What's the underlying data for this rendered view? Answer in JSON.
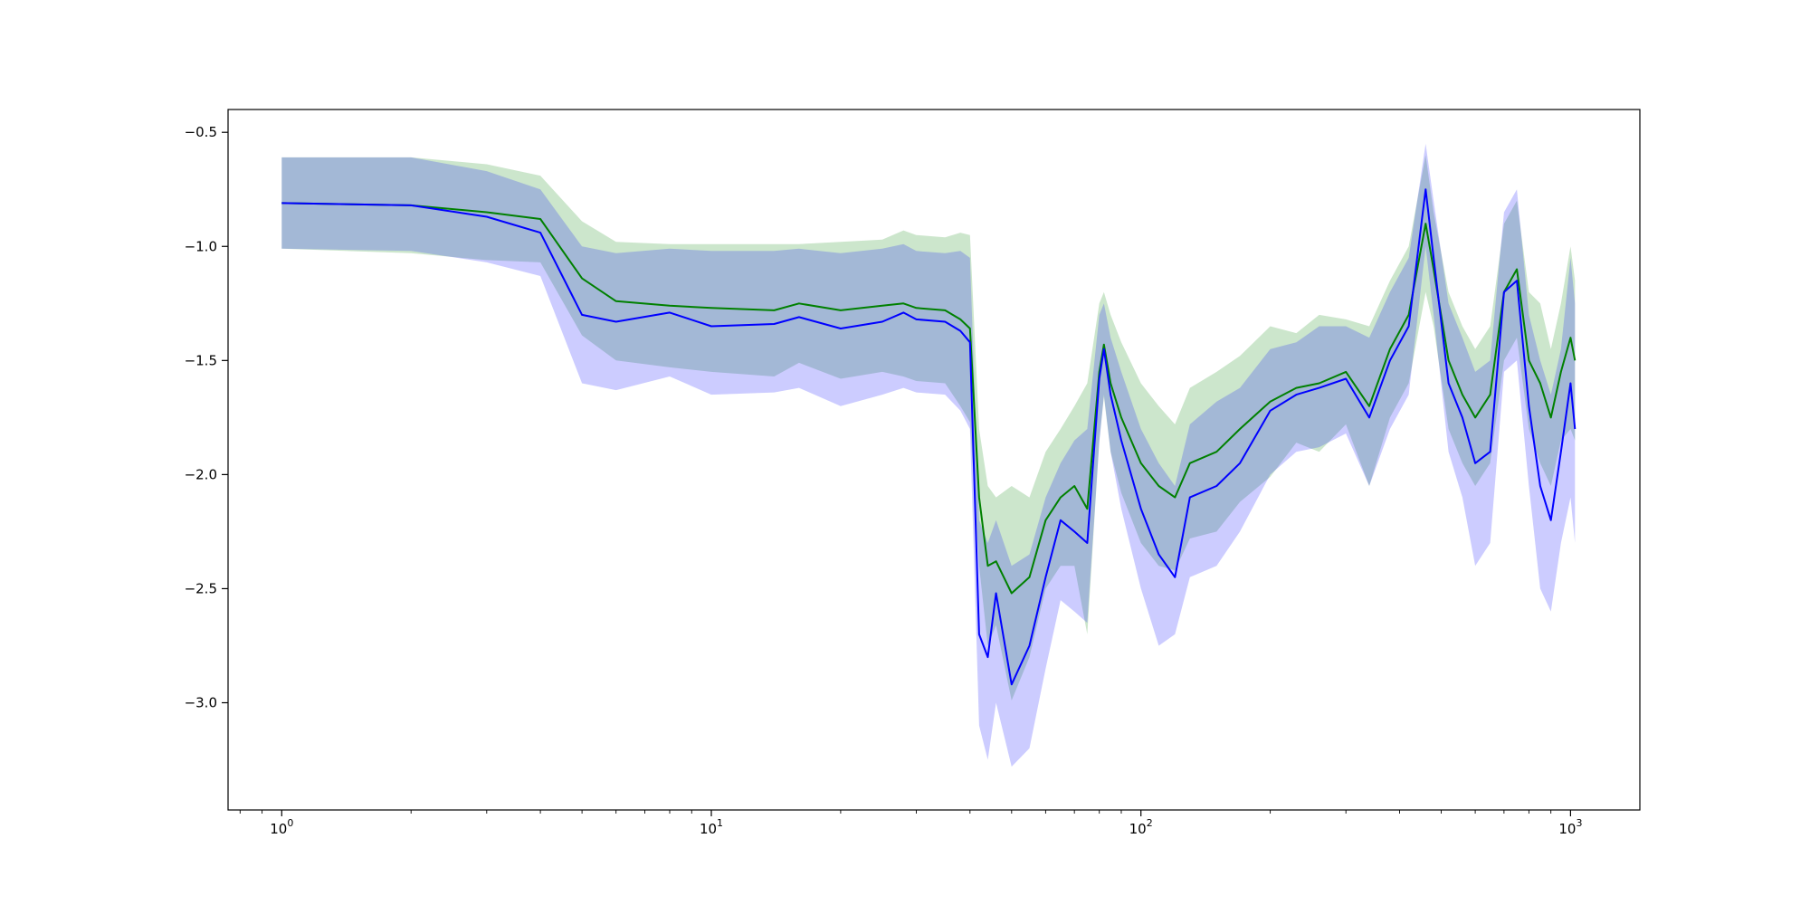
{
  "chart_data": {
    "type": "line",
    "title": "",
    "xlabel": "",
    "ylabel": "",
    "xscale": "log",
    "xlim": [
      0.75,
      1450
    ],
    "ylim": [
      -3.47,
      -0.4
    ],
    "x_ticks": [
      {
        "value": 1,
        "base": "10",
        "exp": "0"
      },
      {
        "value": 10,
        "base": "10",
        "exp": "1"
      },
      {
        "value": 100,
        "base": "10",
        "exp": "2"
      },
      {
        "value": 1000,
        "base": "10",
        "exp": "3"
      }
    ],
    "y_ticks": [
      {
        "value": -0.5,
        "label": "−0.5"
      },
      {
        "value": -1.0,
        "label": "−1.0"
      },
      {
        "value": -1.5,
        "label": "−1.5"
      },
      {
        "value": -2.0,
        "label": "−2.0"
      },
      {
        "value": -2.5,
        "label": "−2.5"
      },
      {
        "value": -3.0,
        "label": "−3.0"
      }
    ],
    "grid": false,
    "legend": "none",
    "series": [
      {
        "color": "#008000",
        "band_color": "#008000",
        "band_opacity": 0.2,
        "x": [
          1,
          2,
          3,
          4,
          5,
          6,
          8,
          10,
          14,
          16,
          20,
          25,
          28,
          30,
          35,
          38,
          40,
          42,
          44,
          46,
          50,
          55,
          60,
          65,
          70,
          75,
          80,
          82,
          85,
          90,
          100,
          110,
          120,
          130,
          150,
          170,
          200,
          230,
          260,
          300,
          340,
          380,
          420,
          460,
          480,
          520,
          560,
          600,
          650,
          700,
          750,
          800,
          850,
          900,
          950,
          1000,
          1024
        ],
        "mean": [
          -0.81,
          -0.82,
          -0.85,
          -0.88,
          -1.14,
          -1.24,
          -1.26,
          -1.27,
          -1.28,
          -1.25,
          -1.28,
          -1.26,
          -1.25,
          -1.27,
          -1.28,
          -1.32,
          -1.36,
          -2.1,
          -2.4,
          -2.38,
          -2.52,
          -2.45,
          -2.2,
          -2.1,
          -2.05,
          -2.15,
          -1.55,
          -1.43,
          -1.6,
          -1.75,
          -1.95,
          -2.05,
          -2.1,
          -1.95,
          -1.9,
          -1.8,
          -1.68,
          -1.62,
          -1.6,
          -1.55,
          -1.7,
          -1.45,
          -1.3,
          -0.9,
          -1.1,
          -1.5,
          -1.65,
          -1.75,
          -1.65,
          -1.2,
          -1.1,
          -1.5,
          -1.6,
          -1.75,
          -1.55,
          -1.4,
          -1.5
        ],
        "upper": [
          -0.61,
          -0.61,
          -0.64,
          -0.69,
          -0.89,
          -0.98,
          -0.99,
          -0.99,
          -0.99,
          -0.99,
          -0.98,
          -0.97,
          -0.93,
          -0.95,
          -0.96,
          -0.94,
          -0.95,
          -1.8,
          -2.05,
          -2.1,
          -2.05,
          -2.1,
          -1.9,
          -1.8,
          -1.7,
          -1.6,
          -1.25,
          -1.2,
          -1.3,
          -1.42,
          -1.6,
          -1.7,
          -1.78,
          -1.62,
          -1.55,
          -1.48,
          -1.35,
          -1.38,
          -1.3,
          -1.32,
          -1.35,
          -1.15,
          -1.0,
          -0.6,
          -0.85,
          -1.2,
          -1.35,
          -1.45,
          -1.35,
          -0.9,
          -0.8,
          -1.2,
          -1.25,
          -1.45,
          -1.25,
          -1.0,
          -1.15
        ]
      },
      {
        "color": "#0000ff",
        "band_color": "#0000ff",
        "band_opacity": 0.2,
        "x": [
          1,
          2,
          3,
          4,
          5,
          6,
          8,
          10,
          14,
          16,
          20,
          25,
          28,
          30,
          35,
          38,
          40,
          42,
          44,
          46,
          50,
          55,
          60,
          65,
          70,
          75,
          80,
          82,
          85,
          90,
          100,
          110,
          120,
          130,
          150,
          170,
          200,
          230,
          260,
          300,
          340,
          380,
          420,
          460,
          480,
          520,
          560,
          600,
          650,
          700,
          750,
          800,
          850,
          900,
          950,
          1000,
          1024
        ],
        "mean": [
          -0.81,
          -0.82,
          -0.87,
          -0.94,
          -1.3,
          -1.33,
          -1.29,
          -1.35,
          -1.34,
          -1.31,
          -1.36,
          -1.33,
          -1.29,
          -1.32,
          -1.33,
          -1.37,
          -1.42,
          -2.7,
          -2.8,
          -2.52,
          -2.92,
          -2.75,
          -2.45,
          -2.2,
          -2.25,
          -2.3,
          -1.58,
          -1.45,
          -1.65,
          -1.85,
          -2.15,
          -2.35,
          -2.45,
          -2.1,
          -2.05,
          -1.95,
          -1.72,
          -1.65,
          -1.62,
          -1.58,
          -1.75,
          -1.5,
          -1.35,
          -0.75,
          -1.05,
          -1.6,
          -1.75,
          -1.95,
          -1.9,
          -1.2,
          -1.15,
          -1.7,
          -2.05,
          -2.2,
          -1.9,
          -1.6,
          -1.8
        ],
        "upper": [
          -0.61,
          -0.61,
          -0.67,
          -0.75,
          -1.0,
          -1.03,
          -1.01,
          -1.02,
          -1.02,
          -1.01,
          -1.03,
          -1.01,
          -0.99,
          -1.02,
          -1.03,
          -1.02,
          -1.05,
          -2.2,
          -2.3,
          -2.2,
          -2.4,
          -2.35,
          -2.1,
          -1.95,
          -1.85,
          -1.8,
          -1.3,
          -1.25,
          -1.4,
          -1.55,
          -1.8,
          -1.95,
          -2.05,
          -1.78,
          -1.68,
          -1.62,
          -1.45,
          -1.42,
          -1.35,
          -1.35,
          -1.4,
          -1.2,
          -1.05,
          -0.55,
          -0.8,
          -1.25,
          -1.4,
          -1.55,
          -1.5,
          -0.85,
          -0.75,
          -1.3,
          -1.5,
          -1.65,
          -1.45,
          -1.05,
          -1.25
        ],
        "lower": [
          -1.01,
          -1.02,
          -1.07,
          -1.13,
          -1.6,
          -1.63,
          -1.57,
          -1.65,
          -1.64,
          -1.62,
          -1.7,
          -1.65,
          -1.62,
          -1.64,
          -1.65,
          -1.72,
          -1.8,
          -3.1,
          -3.25,
          -3.0,
          -3.28,
          -3.2,
          -2.85,
          -2.55,
          -2.6,
          -2.65,
          -1.86,
          -1.65,
          -1.9,
          -2.15,
          -2.5,
          -2.75,
          -2.7,
          -2.45,
          -2.4,
          -2.25,
          -2.0,
          -1.9,
          -1.88,
          -1.82,
          -2.05,
          -1.8,
          -1.65,
          -1.0,
          -1.3,
          -1.9,
          -2.1,
          -2.4,
          -2.3,
          -1.55,
          -1.5,
          -2.05,
          -2.5,
          -2.6,
          -2.3,
          -2.1,
          -2.3
        ]
      }
    ]
  }
}
